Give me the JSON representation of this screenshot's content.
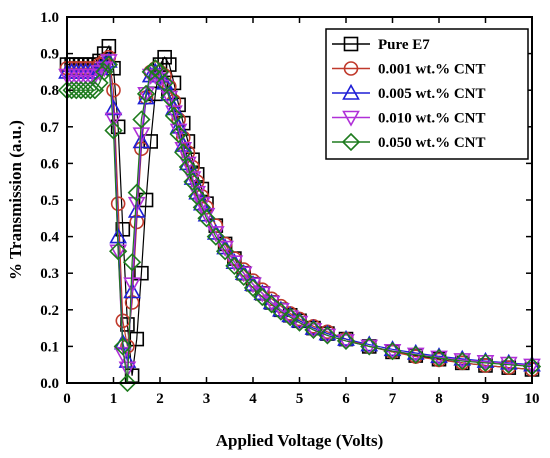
{
  "chart_data": {
    "type": "scatter",
    "title": "",
    "xlabel": "Applied Voltage (Volts)",
    "ylabel": "% Transmission (a.u.)",
    "xlim": [
      0,
      10
    ],
    "ylim": [
      0.0,
      1.0
    ],
    "xticks": [
      "0",
      "1",
      "2",
      "3",
      "4",
      "5",
      "6",
      "7",
      "8",
      "9",
      "10"
    ],
    "yticks": [
      "0.0",
      "0.1",
      "0.2",
      "0.3",
      "0.4",
      "0.5",
      "0.6",
      "0.7",
      "0.8",
      "0.9",
      "1.0"
    ],
    "grid": false,
    "legend_position": "top-right",
    "series": [
      {
        "name": "Pure E7",
        "color": "#000000",
        "marker": "square",
        "x": [
          0.0,
          0.1,
          0.2,
          0.3,
          0.4,
          0.5,
          0.6,
          0.7,
          0.8,
          0.9,
          1.0,
          1.1,
          1.2,
          1.3,
          1.4,
          1.5,
          1.6,
          1.7,
          1.8,
          1.9,
          2.0,
          2.1,
          2.2,
          2.3,
          2.4,
          2.5,
          2.6,
          2.7,
          2.8,
          2.9,
          3.0,
          3.2,
          3.4,
          3.6,
          3.8,
          4.0,
          4.2,
          4.4,
          4.6,
          4.8,
          5.0,
          5.3,
          5.6,
          6.0,
          6.5,
          7.0,
          7.5,
          8.0,
          8.5,
          9.0,
          9.5,
          10.0
        ],
        "y": [
          0.87,
          0.87,
          0.87,
          0.87,
          0.87,
          0.87,
          0.87,
          0.88,
          0.9,
          0.92,
          0.86,
          0.7,
          0.42,
          0.16,
          0.02,
          0.12,
          0.3,
          0.5,
          0.66,
          0.79,
          0.87,
          0.89,
          0.87,
          0.82,
          0.76,
          0.71,
          0.66,
          0.61,
          0.57,
          0.53,
          0.49,
          0.43,
          0.38,
          0.34,
          0.3,
          0.27,
          0.245,
          0.22,
          0.2,
          0.185,
          0.17,
          0.15,
          0.135,
          0.12,
          0.1,
          0.085,
          0.075,
          0.065,
          0.055,
          0.048,
          0.042,
          0.037
        ]
      },
      {
        "name": "0.001 wt.% CNT",
        "color": "#c0392b",
        "marker": "circle",
        "x": [
          0.0,
          0.1,
          0.2,
          0.3,
          0.4,
          0.5,
          0.6,
          0.7,
          0.8,
          0.9,
          1.0,
          1.1,
          1.2,
          1.3,
          1.4,
          1.5,
          1.6,
          1.7,
          1.8,
          1.9,
          2.0,
          2.1,
          2.2,
          2.3,
          2.4,
          2.5,
          2.6,
          2.7,
          2.8,
          2.9,
          3.0,
          3.2,
          3.4,
          3.6,
          3.8,
          4.0,
          4.2,
          4.4,
          4.6,
          4.8,
          5.0,
          5.3,
          5.6,
          6.0,
          6.5,
          7.0,
          7.5,
          8.0,
          8.5,
          9.0,
          9.5,
          10.0
        ],
        "y": [
          0.86,
          0.86,
          0.86,
          0.86,
          0.86,
          0.86,
          0.86,
          0.87,
          0.88,
          0.89,
          0.8,
          0.49,
          0.17,
          0.1,
          0.22,
          0.44,
          0.64,
          0.78,
          0.85,
          0.86,
          0.85,
          0.84,
          0.81,
          0.77,
          0.72,
          0.67,
          0.63,
          0.59,
          0.55,
          0.51,
          0.48,
          0.43,
          0.38,
          0.34,
          0.31,
          0.28,
          0.255,
          0.23,
          0.21,
          0.19,
          0.175,
          0.155,
          0.14,
          0.12,
          0.1,
          0.085,
          0.072,
          0.063,
          0.055,
          0.048,
          0.042,
          0.037
        ]
      },
      {
        "name": "0.005 wt.% CNT",
        "color": "#1f1fd6",
        "marker": "triangle-up",
        "x": [
          0.0,
          0.1,
          0.2,
          0.3,
          0.4,
          0.5,
          0.6,
          0.7,
          0.8,
          0.9,
          1.0,
          1.1,
          1.2,
          1.3,
          1.4,
          1.5,
          1.6,
          1.7,
          1.8,
          1.9,
          2.0,
          2.1,
          2.2,
          2.3,
          2.4,
          2.5,
          2.6,
          2.7,
          2.8,
          2.9,
          3.0,
          3.2,
          3.4,
          3.6,
          3.8,
          4.0,
          4.2,
          4.4,
          4.6,
          4.8,
          5.0,
          5.3,
          5.6,
          6.0,
          6.5,
          7.0,
          7.5,
          8.0,
          8.5,
          9.0,
          9.5,
          10.0
        ],
        "y": [
          0.85,
          0.85,
          0.85,
          0.85,
          0.85,
          0.85,
          0.85,
          0.86,
          0.87,
          0.88,
          0.75,
          0.4,
          0.11,
          0.06,
          0.25,
          0.47,
          0.66,
          0.78,
          0.84,
          0.85,
          0.84,
          0.82,
          0.79,
          0.75,
          0.7,
          0.65,
          0.6,
          0.56,
          0.52,
          0.49,
          0.46,
          0.41,
          0.37,
          0.33,
          0.3,
          0.27,
          0.245,
          0.22,
          0.2,
          0.185,
          0.17,
          0.15,
          0.135,
          0.12,
          0.105,
          0.092,
          0.082,
          0.073,
          0.066,
          0.06,
          0.055,
          0.05
        ]
      },
      {
        "name": "0.010 wt.% CNT",
        "color": "#b030d8",
        "marker": "triangle-down",
        "x": [
          0.0,
          0.1,
          0.2,
          0.3,
          0.4,
          0.5,
          0.6,
          0.7,
          0.8,
          0.9,
          1.0,
          1.1,
          1.2,
          1.3,
          1.4,
          1.5,
          1.6,
          1.7,
          1.8,
          1.9,
          2.0,
          2.1,
          2.2,
          2.3,
          2.4,
          2.5,
          2.6,
          2.7,
          2.8,
          2.9,
          3.0,
          3.2,
          3.4,
          3.6,
          3.8,
          4.0,
          4.2,
          4.4,
          4.6,
          4.8,
          5.0,
          5.3,
          5.6,
          6.0,
          6.5,
          7.0,
          7.5,
          8.0,
          8.5,
          9.0,
          9.5,
          10.0
        ],
        "y": [
          0.84,
          0.84,
          0.84,
          0.84,
          0.84,
          0.84,
          0.84,
          0.85,
          0.86,
          0.88,
          0.72,
          0.36,
          0.08,
          0.04,
          0.27,
          0.49,
          0.68,
          0.79,
          0.84,
          0.84,
          0.83,
          0.81,
          0.78,
          0.74,
          0.69,
          0.64,
          0.6,
          0.56,
          0.52,
          0.49,
          0.46,
          0.41,
          0.37,
          0.33,
          0.3,
          0.27,
          0.245,
          0.22,
          0.2,
          0.18,
          0.165,
          0.145,
          0.13,
          0.115,
          0.1,
          0.088,
          0.078,
          0.07,
          0.063,
          0.058,
          0.053,
          0.048
        ]
      },
      {
        "name": "0.050 wt.% CNT",
        "color": "#1e7b1e",
        "marker": "diamond",
        "x": [
          0.0,
          0.1,
          0.2,
          0.3,
          0.4,
          0.5,
          0.6,
          0.7,
          0.8,
          0.9,
          1.0,
          1.1,
          1.2,
          1.3,
          1.4,
          1.5,
          1.6,
          1.7,
          1.8,
          1.9,
          2.0,
          2.1,
          2.2,
          2.3,
          2.4,
          2.5,
          2.6,
          2.7,
          2.8,
          2.9,
          3.0,
          3.2,
          3.4,
          3.6,
          3.8,
          4.0,
          4.2,
          4.4,
          4.6,
          4.8,
          5.0,
          5.3,
          5.6,
          6.0,
          6.5,
          7.0,
          7.5,
          8.0,
          8.5,
          9.0,
          9.5,
          10.0
        ],
        "y": [
          0.8,
          0.8,
          0.8,
          0.8,
          0.8,
          0.8,
          0.8,
          0.82,
          0.85,
          0.87,
          0.69,
          0.36,
          0.1,
          0.0,
          0.33,
          0.52,
          0.72,
          0.79,
          0.85,
          0.86,
          0.85,
          0.82,
          0.78,
          0.73,
          0.68,
          0.63,
          0.59,
          0.55,
          0.51,
          0.48,
          0.45,
          0.4,
          0.36,
          0.32,
          0.29,
          0.26,
          0.235,
          0.215,
          0.195,
          0.18,
          0.165,
          0.145,
          0.13,
          0.115,
          0.1,
          0.087,
          0.077,
          0.068,
          0.06,
          0.055,
          0.05,
          0.045
        ]
      }
    ]
  }
}
